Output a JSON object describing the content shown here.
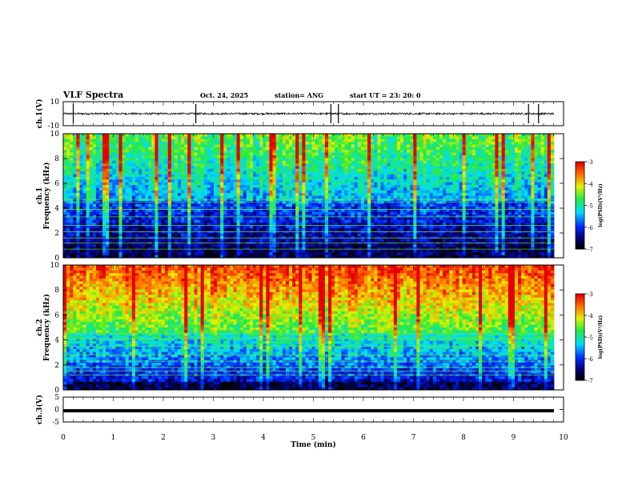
{
  "header": {
    "title": "VLF Spectra",
    "date": "Oct. 24, 2025",
    "station": "station= ANG",
    "start": "start  UT  =   23: 20: 0"
  },
  "chart_data": [
    {
      "type": "line",
      "ylabel": "ch.1(V)",
      "ylim": [
        -10,
        10
      ],
      "yticks": [
        "10",
        "-10"
      ],
      "xlim": [
        0,
        10
      ],
      "baseline": 0,
      "spikes_x": [
        0.2,
        2.65,
        5.35,
        5.5,
        9.3,
        9.5
      ],
      "color": "#000000"
    },
    {
      "type": "heatmap",
      "ylabel": "ch.1\nFrequency (kHz)",
      "ylim": [
        0,
        10
      ],
      "yticks": [
        "0",
        "2",
        "4",
        "6",
        "8",
        "10"
      ],
      "xlim": [
        0,
        10
      ],
      "colorbar": {
        "label": "log(PSD)(V²/Hz)",
        "range": [
          -7,
          -3
        ],
        "ticks": [
          "-3",
          "-4",
          "-5",
          "-6",
          "-7"
        ]
      }
    },
    {
      "type": "heatmap",
      "ylabel": "ch.2\nFrequency (kHz)",
      "ylim": [
        0,
        10
      ],
      "yticks": [
        "0",
        "2",
        "4",
        "6",
        "8",
        "10"
      ],
      "xlim": [
        0,
        10
      ],
      "colorbar": {
        "label": "log(PSD)(V²/Hz)",
        "range": [
          -7,
          -3
        ],
        "ticks": [
          "-3",
          "-4",
          "-5",
          "-6",
          "-7"
        ]
      }
    },
    {
      "type": "line",
      "ylabel": "ch.3(V)",
      "ylim": [
        -5,
        5
      ],
      "yticks": [
        "5",
        "0",
        "-5"
      ],
      "xlim": [
        0,
        10
      ],
      "baseline": -0.5,
      "color": "#000000"
    }
  ],
  "xaxis": {
    "label": "Time  (min)",
    "ticks": [
      "0",
      "1",
      "2",
      "3",
      "4",
      "5",
      "6",
      "7",
      "8",
      "9",
      "10"
    ]
  }
}
